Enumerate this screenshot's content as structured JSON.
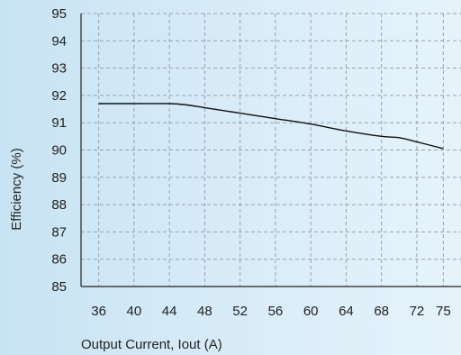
{
  "chart_data": {
    "type": "line",
    "title": "",
    "xlabel": "Output Current, Iout (A)",
    "ylabel": "Efficiency (%)",
    "x_ticks": [
      36,
      40,
      44,
      48,
      52,
      56,
      60,
      64,
      68,
      72,
      75
    ],
    "y_ticks": [
      85,
      86,
      87,
      88,
      89,
      90,
      91,
      92,
      93,
      94,
      95
    ],
    "xlim": [
      34,
      77
    ],
    "ylim": [
      85,
      95
    ],
    "grid": true,
    "series": [
      {
        "color": "#111111",
        "x": [
          36,
          40,
          44,
          46,
          48,
          52,
          56,
          60,
          64,
          68,
          70,
          72,
          75
        ],
        "y": [
          91.7,
          91.7,
          91.7,
          91.65,
          91.55,
          91.35,
          91.15,
          90.95,
          90.7,
          90.5,
          90.45,
          90.3,
          90.05
        ]
      }
    ]
  }
}
